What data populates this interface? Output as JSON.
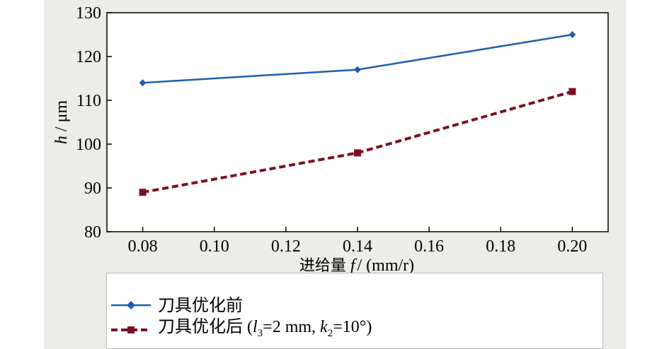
{
  "chart_data": {
    "type": "line",
    "x": [
      0.08,
      0.14,
      0.2
    ],
    "xlim": [
      0.07,
      0.21
    ],
    "ylim": [
      80,
      130
    ],
    "xticks": [
      "0.08",
      "0.10",
      "0.12",
      "0.14",
      "0.16",
      "0.18",
      "0.20"
    ],
    "yticks": [
      "80",
      "90",
      "100",
      "110",
      "120",
      "130"
    ],
    "xlabel_cn": "进给量",
    "xlabel_var": "f",
    "xlabel_unit": "/ (mm/r)",
    "ylabel_var": "h",
    "ylabel_unit": "/ μm",
    "grid": false,
    "legend_placement": "bottom",
    "series": [
      {
        "name": "刀具优化前",
        "values": [
          114,
          117,
          125
        ],
        "color": "#1f5fad",
        "marker": "diamond",
        "style": "solid"
      },
      {
        "name": "刀具优化后",
        "name_suffix": "(l3=2 mm, k2=10°)",
        "values": [
          89,
          98,
          112
        ],
        "color": "#7a1020",
        "marker": "square",
        "style": "dashed"
      }
    ]
  },
  "legend": {
    "item1": "刀具优化前",
    "item2_cn": "刀具优化后",
    "item2_param_open": " (",
    "item2_l": "l",
    "item2_l_sub": "3",
    "item2_l_val": "=2 mm, ",
    "item2_k": "k",
    "item2_k_sub": "2",
    "item2_k_val": "=10°)"
  }
}
